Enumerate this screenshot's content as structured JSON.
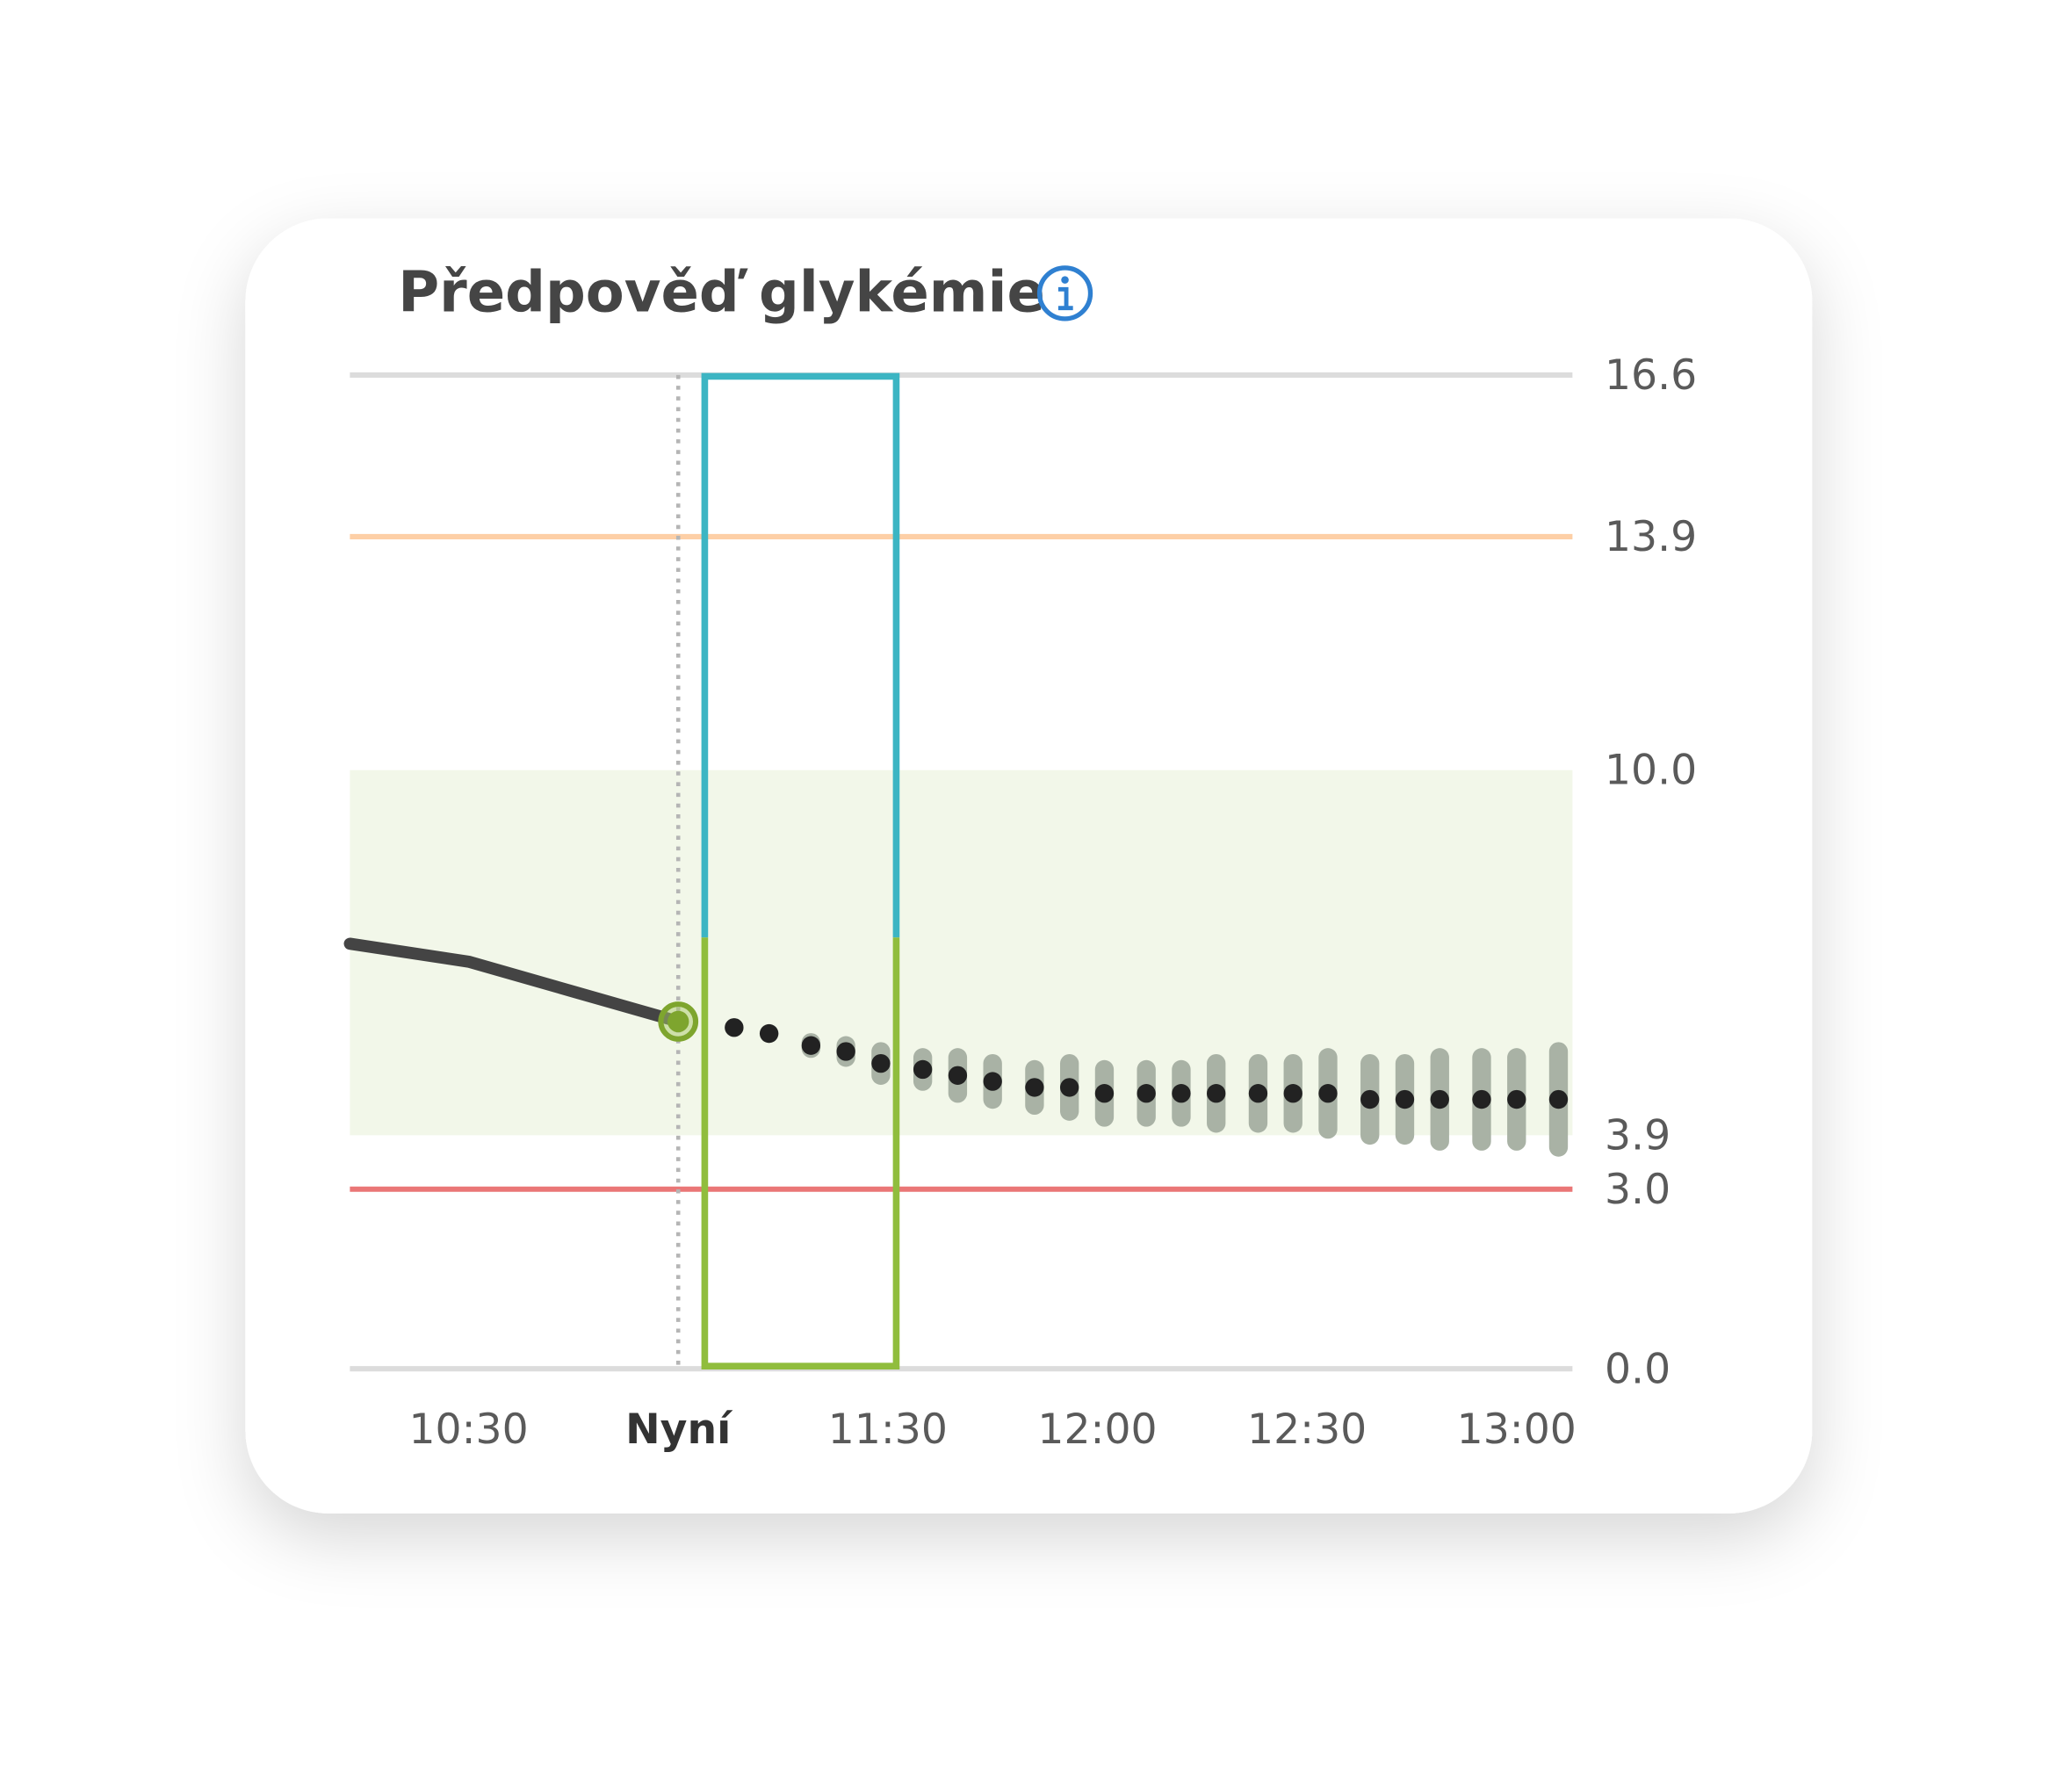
{
  "chart_data": {
    "type": "line",
    "title": "Předpověď glykémie",
    "xlim": [
      "10:13",
      "13:08"
    ],
    "xticks": [
      "10:30",
      {
        "value": "11:00",
        "label": "Nyní"
      },
      "11:30",
      "12:00",
      "12:30",
      "13:00"
    ],
    "ylim": [
      0,
      16.6
    ],
    "yticks": [
      {
        "value": 0,
        "label": "0.0"
      },
      {
        "value": 3,
        "label": "3.0"
      },
      3.9,
      {
        "value": 10,
        "label": "10.0"
      },
      13.9,
      16.6
    ],
    "frame_lines": true,
    "target_range": {
      "values": [
        3.9,
        10
      ],
      "color": "#f2f7e9"
    },
    "thresholds": [
      {
        "value": 13.9,
        "color": "#fdcfa6"
      },
      {
        "value": 3,
        "color": "#ea7676"
      }
    ],
    "series": [
      {
        "style": "solid",
        "color": "#444444",
        "marker_color": "#7ea52e",
        "x": [
          "10:13",
          "10:30",
          "10:45",
          "11:00"
        ],
        "values": [
          7.1,
          6.8,
          6.3,
          5.8
        ]
      },
      {
        "style": "dots",
        "color": "#222222",
        "error_color": "#a9b2a5",
        "x": [
          "11:08",
          "11:13",
          "11:19",
          "11:24",
          "11:29",
          "11:35",
          "11:40",
          "11:45",
          "11:51",
          "11:56",
          "12:01",
          "12:07",
          "12:12",
          "12:17",
          "12:23",
          "12:28",
          "12:33",
          "12:39",
          "12:44",
          "12:49",
          "12:55",
          "13:00",
          "13:06"
        ],
        "values": [
          5.7,
          5.6,
          5.4,
          5.3,
          5.1,
          5.0,
          4.9,
          4.8,
          4.7,
          4.7,
          4.6,
          4.6,
          4.6,
          4.6,
          4.6,
          4.6,
          4.6,
          4.5,
          4.5,
          4.5,
          4.5,
          4.5,
          4.5
        ],
        "errors": [
          0,
          0,
          0.05,
          0.1,
          0.2,
          0.2,
          0.3,
          0.3,
          0.3,
          0.4,
          0.4,
          0.4,
          0.4,
          0.5,
          0.5,
          0.5,
          0.6,
          0.6,
          0.6,
          0.7,
          0.7,
          0.7,
          0.8
        ]
      }
    ]
  }
}
